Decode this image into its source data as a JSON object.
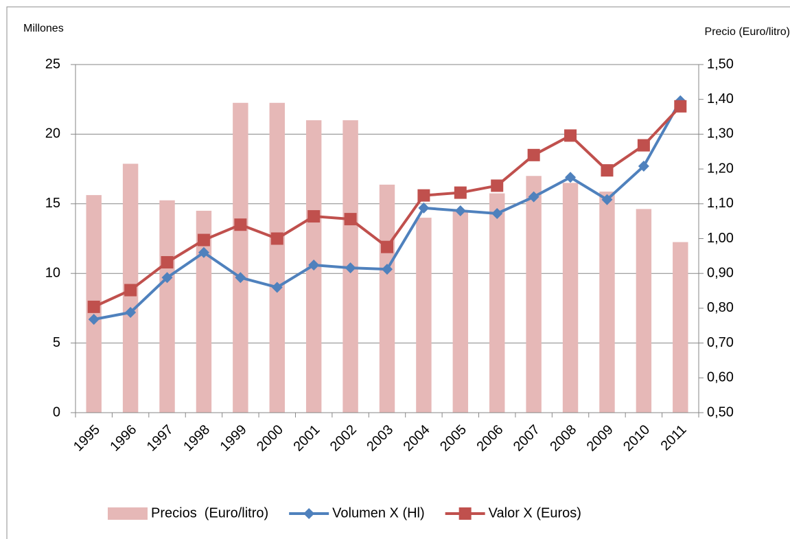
{
  "chart_data": {
    "type": "bar-line",
    "y_label": "Millones",
    "y2_label": "Precio (Euro/litro)",
    "categories": [
      "1995",
      "1996",
      "1997",
      "1998",
      "1999",
      "2000",
      "2001",
      "2002",
      "2003",
      "2004",
      "2005",
      "2006",
      "2007",
      "2008",
      "2009",
      "2010",
      "2011"
    ],
    "series": [
      {
        "name": "Precios  (Euro/litro)",
        "type": "bar",
        "axis": "y2",
        "color": "#e6b8b7",
        "values": [
          1.125,
          1.215,
          1.11,
          1.08,
          1.39,
          1.39,
          1.34,
          1.34,
          1.155,
          1.06,
          1.08,
          1.13,
          1.18,
          1.16,
          1.135,
          1.085,
          0.99
        ]
      },
      {
        "name": "Volumen X (Hl)",
        "type": "line",
        "marker": "diamond",
        "color": "#4f81bd",
        "values": [
          6.7,
          7.2,
          9.7,
          11.5,
          9.7,
          9.0,
          10.6,
          10.4,
          10.3,
          14.7,
          14.5,
          14.3,
          15.5,
          16.9,
          15.3,
          17.7,
          22.4
        ]
      },
      {
        "name": "Valor X (Euros)",
        "type": "line",
        "marker": "square",
        "color": "#c0504d",
        "values": [
          7.6,
          8.8,
          10.8,
          12.4,
          13.5,
          12.5,
          14.1,
          13.9,
          11.9,
          15.6,
          15.8,
          16.3,
          18.5,
          19.9,
          17.4,
          19.2,
          22.0
        ]
      }
    ],
    "ylim": [
      0,
      25
    ],
    "yticks": [
      0,
      5,
      10,
      15,
      20,
      25
    ],
    "y2lim": [
      0.5,
      1.5
    ],
    "y2ticks": [
      {
        "value": 0.5,
        "label": "0,50"
      },
      {
        "value": 0.6,
        "label": "0,60"
      },
      {
        "value": 0.7,
        "label": "0,70"
      },
      {
        "value": 0.8,
        "label": "0,80"
      },
      {
        "value": 0.9,
        "label": "0,90"
      },
      {
        "value": 1.0,
        "label": "1,00"
      },
      {
        "value": 1.1,
        "label": "1,10"
      },
      {
        "value": 1.2,
        "label": "1,20"
      },
      {
        "value": 1.3,
        "label": "1,30"
      },
      {
        "value": 1.4,
        "label": "1,40"
      },
      {
        "value": 1.5,
        "label": "1,50"
      }
    ],
    "grid": true,
    "legend": "bottom"
  }
}
